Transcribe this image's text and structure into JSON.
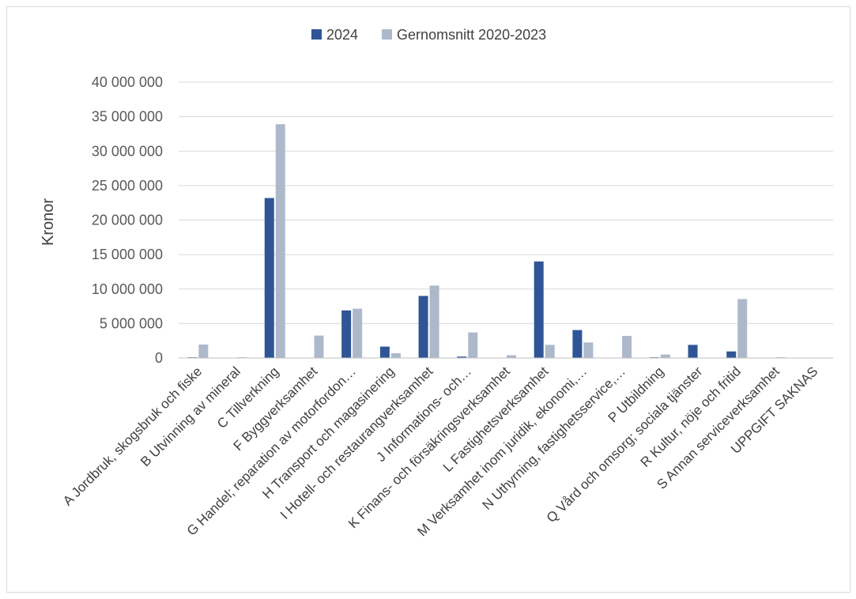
{
  "chart_data": {
    "type": "bar",
    "ylabel": "Kronor",
    "xlabel": "",
    "ylim": [
      0,
      40000000
    ],
    "yticks": [
      0,
      5000000,
      10000000,
      15000000,
      20000000,
      25000000,
      30000000,
      35000000,
      40000000
    ],
    "ytick_labels": [
      "0",
      "5 000 000",
      "10 000 000",
      "15 000 000",
      "20 000 000",
      "25 000 000",
      "30 000 000",
      "35 000 000",
      "40 000 000"
    ],
    "grid": true,
    "legend_position": "top-center",
    "categories": [
      "A Jordbruk, skogsbruk och fiske",
      "B Utvinning av mineral",
      "C Tillverkning",
      "F Byggverksamhet",
      "G Handel; reparation av motorfordon…",
      "H Transport och magasinering",
      "I Hotell- och restaurangverksamhet",
      "J Informations- och…",
      "K Finans- och försäkringsverksamhet",
      "L Fastighetsverksamhet",
      "M Verksamhet inom juridik, ekonomi,…",
      "N Uthyrning, fastighetsservice,…",
      "P Utbildning",
      "Q Vård och omsorg; sociala tjänster",
      "R Kultur, nöje och fritid",
      "S Annan serviceverksamhet",
      "UPPGIFT SAKNAS"
    ],
    "series": [
      {
        "name": "2024",
        "color": "#2f5597",
        "values": [
          100000,
          0,
          23200000,
          0,
          6900000,
          1650000,
          9000000,
          200000,
          0,
          14000000,
          4050000,
          0,
          100000,
          1900000,
          950000,
          0,
          0
        ]
      },
      {
        "name": "Gernomsnitt 2020-2023",
        "color": "#adb9ca",
        "values": [
          1950000,
          100000,
          33900000,
          3250000,
          7150000,
          700000,
          10500000,
          3700000,
          400000,
          1900000,
          2250000,
          3200000,
          500000,
          0,
          8550000,
          100000,
          0
        ]
      }
    ]
  }
}
